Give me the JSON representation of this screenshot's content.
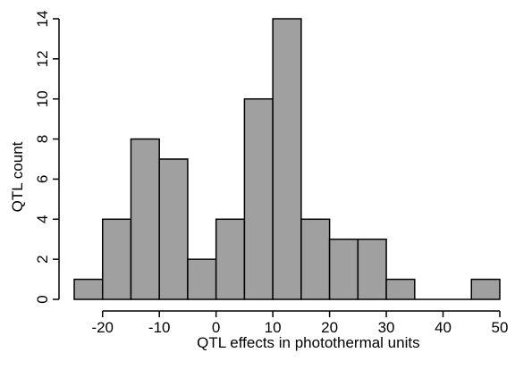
{
  "chart_data": {
    "type": "bar",
    "subtype": "histogram",
    "title": "",
    "xlabel": "QTL effects in photothermal units",
    "ylabel": "QTL count",
    "bin_width": 5,
    "bins": [
      {
        "start": -25,
        "end": -20,
        "count": 1
      },
      {
        "start": -20,
        "end": -15,
        "count": 4
      },
      {
        "start": -15,
        "end": -10,
        "count": 8
      },
      {
        "start": -10,
        "end": -5,
        "count": 7
      },
      {
        "start": -5,
        "end": 0,
        "count": 2
      },
      {
        "start": 0,
        "end": 5,
        "count": 4
      },
      {
        "start": 5,
        "end": 10,
        "count": 10
      },
      {
        "start": 10,
        "end": 15,
        "count": 14
      },
      {
        "start": 15,
        "end": 20,
        "count": 4
      },
      {
        "start": 20,
        "end": 25,
        "count": 3
      },
      {
        "start": 25,
        "end": 30,
        "count": 3
      },
      {
        "start": 30,
        "end": 35,
        "count": 1
      },
      {
        "start": 35,
        "end": 40,
        "count": 0
      },
      {
        "start": 40,
        "end": 45,
        "count": 0
      },
      {
        "start": 45,
        "end": 50,
        "count": 1
      }
    ],
    "xlim": [
      -25,
      50
    ],
    "ylim": [
      0,
      14
    ],
    "x_ticks": [
      -20,
      -10,
      0,
      10,
      20,
      30,
      40,
      50
    ],
    "x_tick_labels": [
      "-20",
      "-10",
      "0",
      "10",
      "20",
      "30",
      "40",
      "50"
    ],
    "y_ticks": [
      0,
      2,
      4,
      6,
      8,
      10,
      12,
      14
    ],
    "y_tick_labels": [
      "0",
      "2",
      "4",
      "6",
      "8",
      "10",
      "12",
      "14"
    ],
    "grid": false,
    "bar_color": "#a0a0a0",
    "edge_color": "#000000"
  }
}
